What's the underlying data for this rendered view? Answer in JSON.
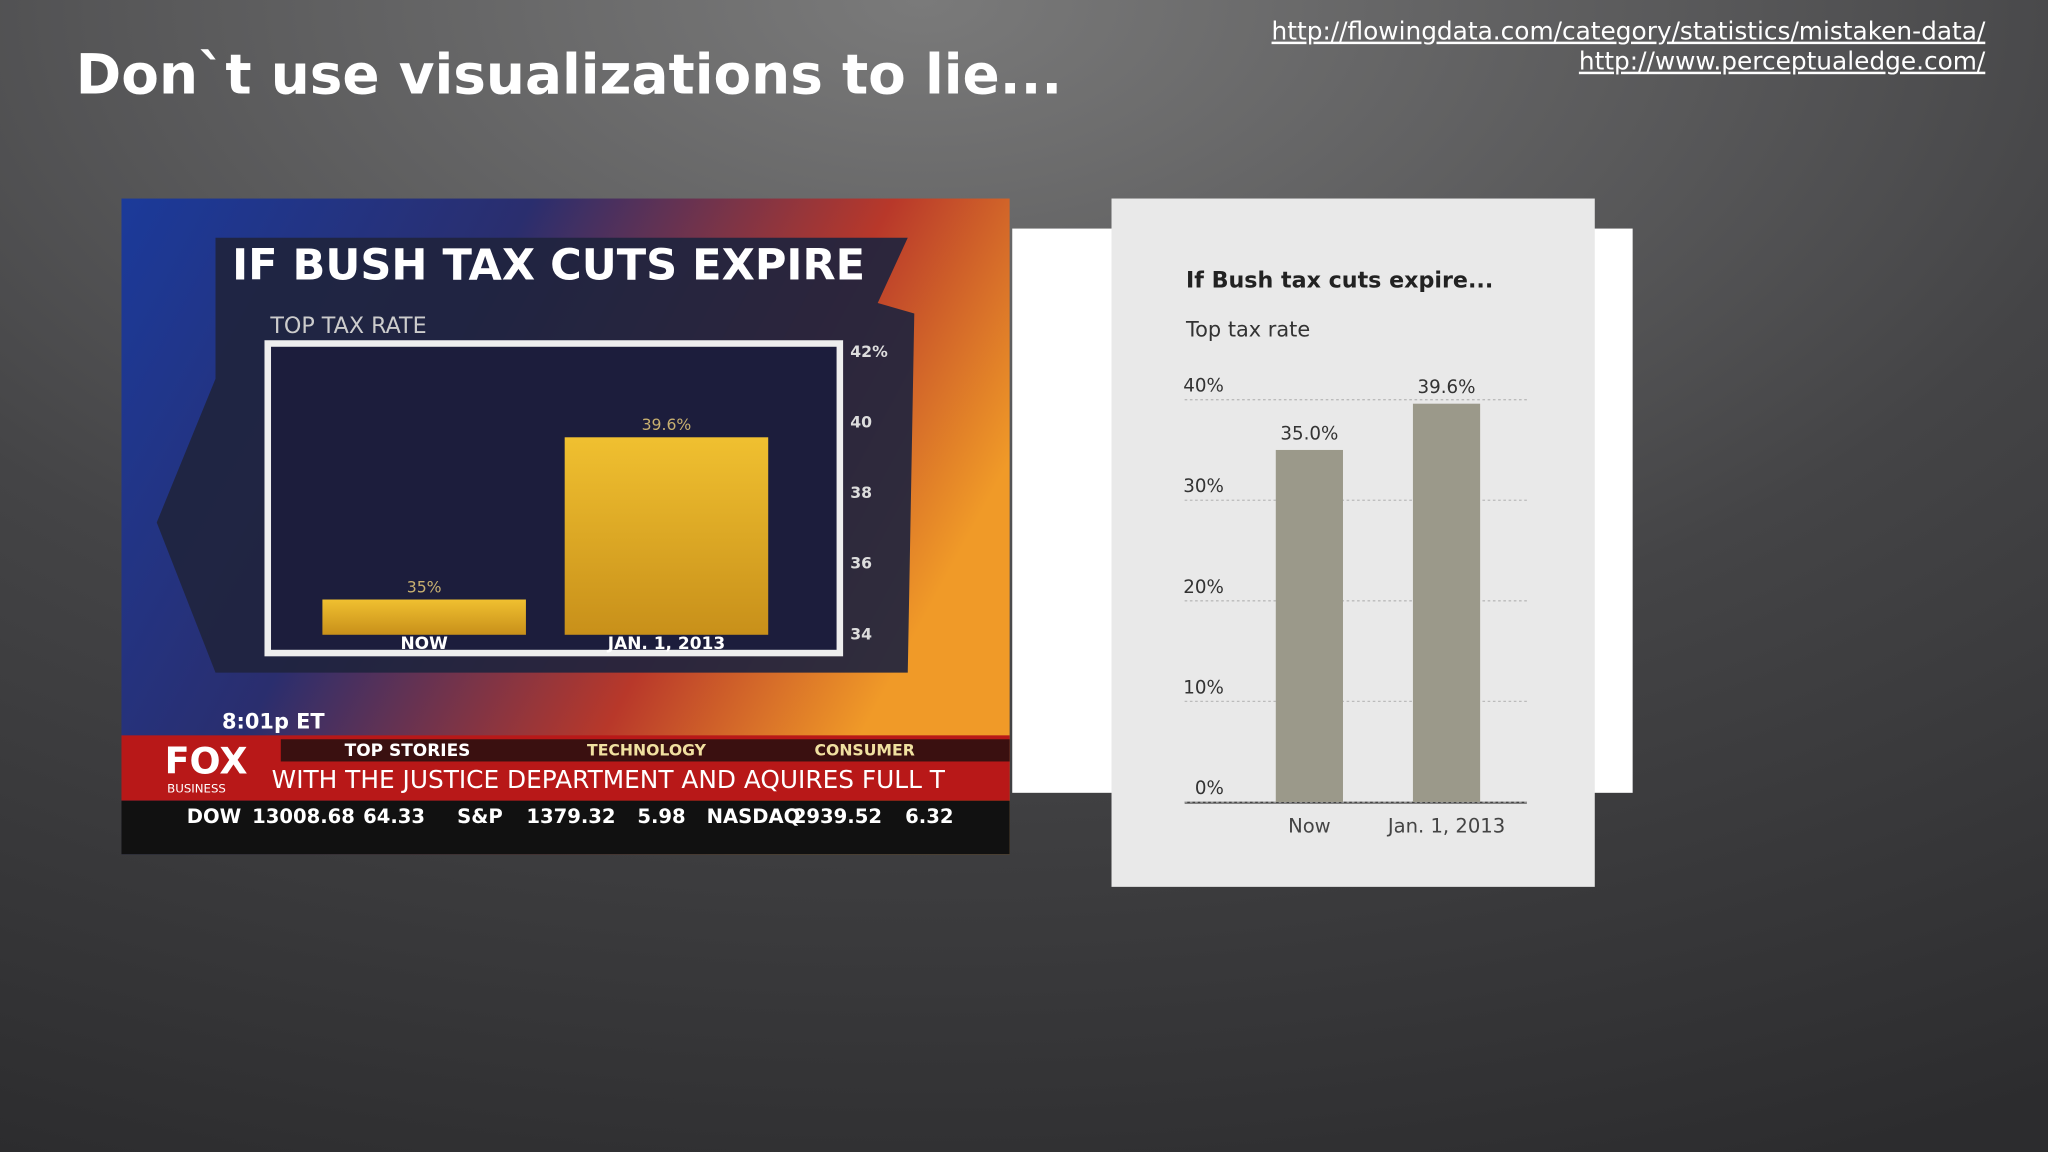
{
  "slide": {
    "title": "Don`t use visualizations to lie...",
    "links": [
      "http://flowingdata.com/category/statistics/mistaken-data/",
      "http://www.perceptualedge.com/"
    ]
  },
  "broadcast": {
    "time": "8:01p ET",
    "logo": "FOX",
    "logo_sub": "BUSINESS",
    "tabs": [
      "TOP STORIES",
      "TECHNOLOGY",
      "CONSUMER"
    ],
    "headline": "WITH THE JUSTICE DEPARTMENT AND AQUIRES FULL T",
    "tickers": [
      {
        "name": "DOW",
        "value": "13008.68",
        "change": "64.33"
      },
      {
        "name": "S&P",
        "value": "1379.32",
        "change": "5.98"
      },
      {
        "name": "NASDAQ",
        "value": "2939.52",
        "change": "6.32"
      }
    ]
  },
  "chart_data": [
    {
      "type": "bar",
      "title": "IF BUSH TAX CUTS EXPIRE",
      "subtitle": "TOP TAX RATE",
      "categories": [
        "NOW",
        "JAN. 1, 2013"
      ],
      "values": [
        35,
        39.6
      ],
      "value_labels": [
        "35%",
        "39.6%"
      ],
      "color": "#d9a520",
      "ylim": [
        34,
        42
      ],
      "yticks": [
        34,
        36,
        38,
        40,
        {
          "value": 42,
          "label": "42%"
        }
      ],
      "yaxis_position": "right",
      "grid": false
    },
    {
      "type": "bar",
      "title": "If Bush tax cuts expire...",
      "subtitle": "Top tax rate",
      "categories": [
        "Now",
        "Jan. 1, 2013"
      ],
      "values": [
        35,
        39.6
      ],
      "value_labels": [
        "35.0%",
        "39.6%"
      ],
      "color": "#9b998a",
      "ylim": [
        0,
        40
      ],
      "yticks": [
        {
          "value": 0,
          "label": "0%"
        },
        {
          "value": 10,
          "label": "10%"
        },
        {
          "value": 20,
          "label": "20%"
        },
        {
          "value": 30,
          "label": "30%"
        },
        {
          "value": 40,
          "label": "40%"
        }
      ],
      "yaxis_position": "left",
      "grid": true
    }
  ]
}
